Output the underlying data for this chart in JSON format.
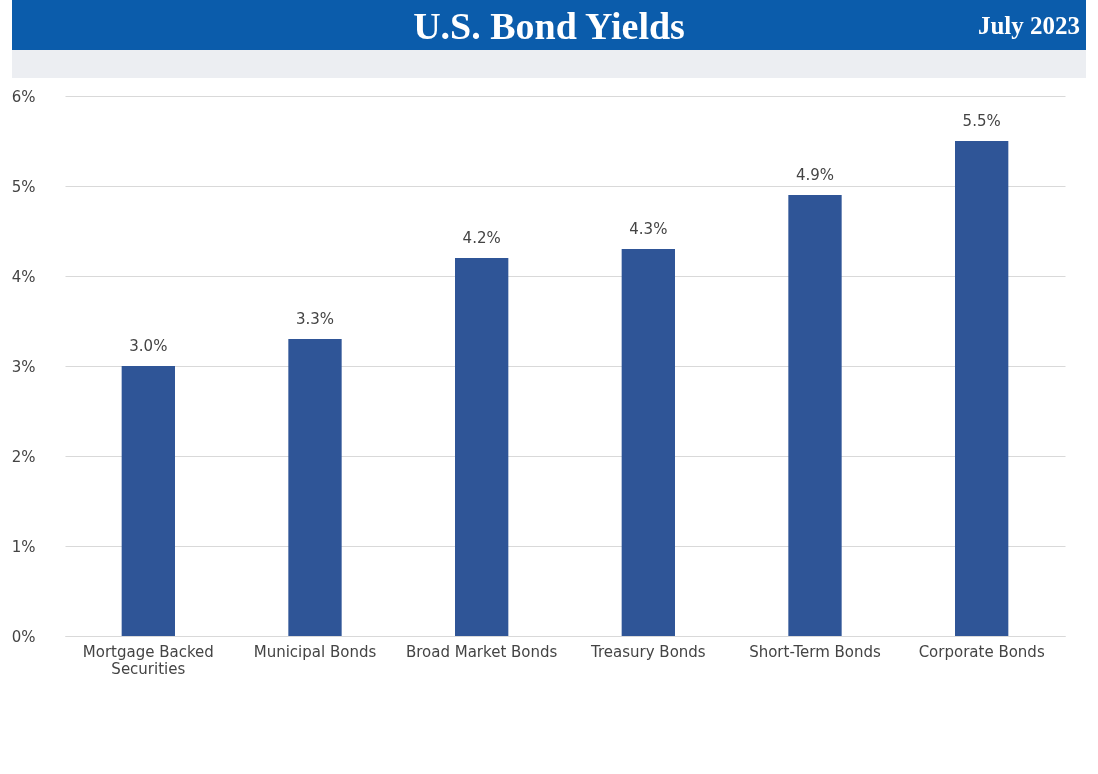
{
  "chart_data": {
    "type": "bar",
    "title": "U.S. Bond Yields",
    "subtitle": "July 2023",
    "categories": [
      "Mortgage Backed Securities",
      "Municipal Bonds",
      "Broad Market Bonds",
      "Treasury Bonds",
      "Short-Term Bonds",
      "Corporate Bonds"
    ],
    "values": [
      3.0,
      3.3,
      4.2,
      4.3,
      4.9,
      5.5
    ],
    "value_labels": [
      "3.0%",
      "3.3%",
      "4.2%",
      "4.3%",
      "4.9%",
      "5.5%"
    ],
    "color": "#2f5597",
    "ylim": [
      0,
      6
    ],
    "yticks": [
      {
        "value": 0,
        "label": "0%"
      },
      {
        "value": 1,
        "label": "1%"
      },
      {
        "value": 2,
        "label": "2%"
      },
      {
        "value": 3,
        "label": "3%"
      },
      {
        "value": 4,
        "label": "4%"
      },
      {
        "value": 5,
        "label": "5%"
      },
      {
        "value": 6,
        "label": "6%"
      }
    ],
    "grid": "y"
  }
}
